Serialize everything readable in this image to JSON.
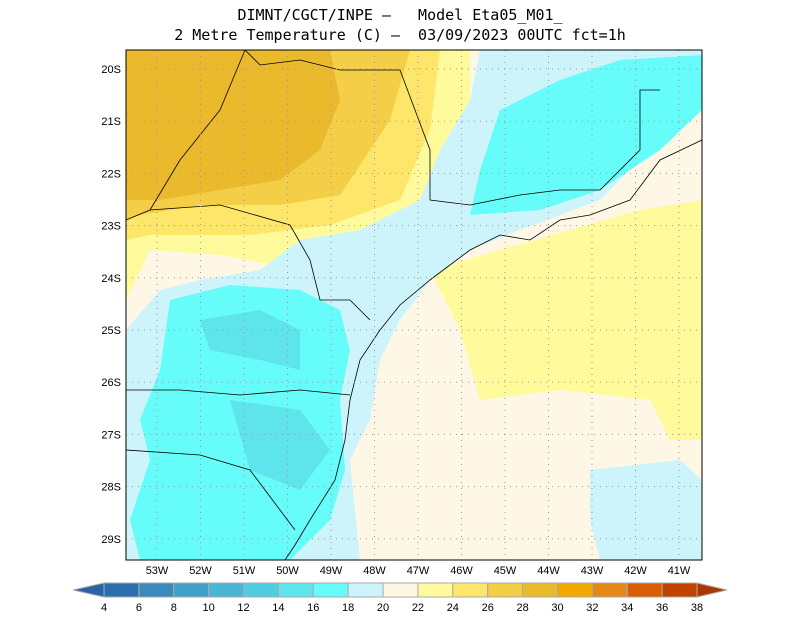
{
  "title": {
    "line1": "DIMNT/CGCT/INPE –   Model Eta05_M01_",
    "line2": "2 Metre Temperature (C) –  03/09/2023 00UTC fct=1h"
  },
  "axes": {
    "lat_labels": [
      "20S",
      "21S",
      "22S",
      "23S",
      "24S",
      "25S",
      "26S",
      "27S",
      "28S",
      "29S"
    ],
    "lon_labels": [
      "53W",
      "52W",
      "51W",
      "50W",
      "49W",
      "48W",
      "47W",
      "46W",
      "45W",
      "44W",
      "43W",
      "42W",
      "41W"
    ]
  },
  "colorbar": {
    "labels": [
      "4",
      "6",
      "8",
      "10",
      "12",
      "14",
      "16",
      "18",
      "20",
      "22",
      "24",
      "26",
      "28",
      "30",
      "32",
      "34",
      "36",
      "38"
    ],
    "colors": [
      "#2c6fad",
      "#3a8bbd",
      "#3fa1c9",
      "#48b7d6",
      "#50cde0",
      "#5ee5ec",
      "#66fcf9",
      "#cef4fb",
      "#fff7e6",
      "#fffb9c",
      "#fde66a",
      "#f5ce48",
      "#ebba2c",
      "#f2a900",
      "#e48818",
      "#d95e03",
      "#c04400"
    ],
    "low_arrow_color": "#2a63a6",
    "high_arrow_color": "#a83800"
  }
}
